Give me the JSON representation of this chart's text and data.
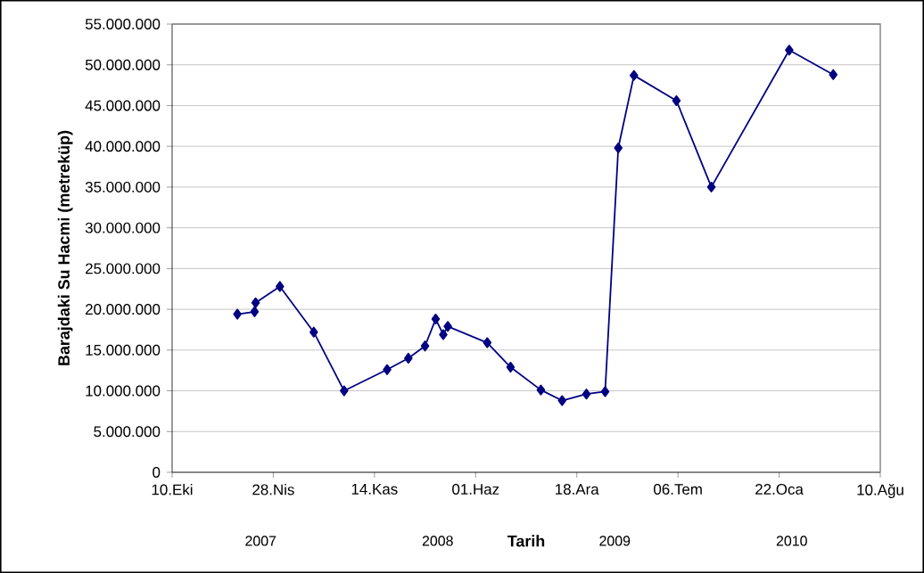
{
  "chart_data": {
    "type": "line",
    "xlabel": "Tarih",
    "ylabel": "Barajdaki Su Hacmi (metreküp)",
    "annotations": [
      "2007",
      "2008",
      "2009",
      "2010"
    ],
    "x": [
      "2007-02-16",
      "2007-03-22",
      "2007-03-24",
      "2007-05-11",
      "2007-07-17",
      "2007-09-15",
      "2007-12-09",
      "2008-01-20",
      "2008-02-22",
      "2008-03-14",
      "2008-03-29",
      "2008-04-07",
      "2008-06-24",
      "2008-08-09",
      "2008-10-08",
      "2008-11-19",
      "2009-01-06",
      "2009-02-12",
      "2009-03-10",
      "2009-04-10",
      "2009-07-03",
      "2009-09-10",
      "2010-02-11",
      "2010-05-09"
    ],
    "series": [
      {
        "color": "#000080",
        "values": [
          19400000,
          19700000,
          20800000,
          22800000,
          17200000,
          10000000,
          12600000,
          14000000,
          15500000,
          18800000,
          16900000,
          17900000,
          15900000,
          12900000,
          10100000,
          8800000,
          9600000,
          9900000,
          39800000,
          48700000,
          45600000,
          35000000,
          51800000,
          48800000
        ]
      }
    ],
    "xlim": [
      "2006-10-10",
      "2010-08-10"
    ],
    "xticks": [
      {
        "value": "2006-10-10",
        "label": "10.Eki"
      },
      {
        "value": "2007-04-28",
        "label": "28.Nis"
      },
      {
        "value": "2007-11-14",
        "label": "14.Kas"
      },
      {
        "value": "2008-06-01",
        "label": "01.Haz"
      },
      {
        "value": "2008-12-18",
        "label": "18.Ara"
      },
      {
        "value": "2009-07-06",
        "label": "06.Tem"
      },
      {
        "value": "2010-01-22",
        "label": "22.Oca"
      },
      {
        "value": "2010-08-10",
        "label": "10.Ağu"
      }
    ],
    "ylim": [
      0,
      55000000
    ],
    "yticks": [
      0,
      {
        "value": 5000000,
        "label": "5.000.000"
      },
      {
        "value": 10000000,
        "label": "10.000.000"
      },
      {
        "value": 15000000,
        "label": "15.000.000"
      },
      {
        "value": 20000000,
        "label": "20.000.000"
      },
      {
        "value": 25000000,
        "label": "25.000.000"
      },
      {
        "value": 30000000,
        "label": "30.000.000"
      },
      {
        "value": 35000000,
        "label": "35.000.000"
      },
      {
        "value": 40000000,
        "label": "40.000.000"
      },
      {
        "value": 45000000,
        "label": "45.000.000"
      },
      {
        "value": 50000000,
        "label": "50.000.000"
      },
      {
        "value": 55000000,
        "label": "55.000.000"
      }
    ],
    "grid": "y",
    "marker": "diamond",
    "line_style": "solid"
  }
}
